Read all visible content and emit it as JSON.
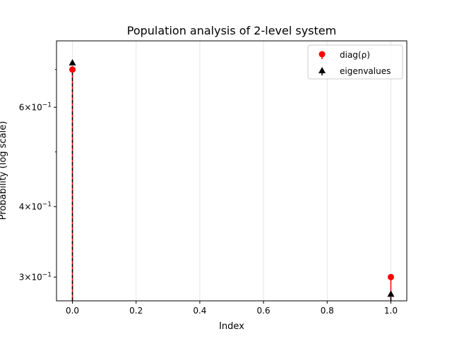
{
  "chart_data": {
    "type": "scatter",
    "title": "Population analysis of 2-level system",
    "xlabel": "Index",
    "ylabel": "Probability (log scale)",
    "yscale": "log",
    "xlim": [
      -0.05,
      1.05
    ],
    "ylim": [
      0.2723,
      0.7868
    ],
    "grid": "x-only",
    "legend_position": "top-right",
    "x_ticks": [
      {
        "value": 0.0,
        "label": "0.0"
      },
      {
        "value": 0.2,
        "label": "0.2"
      },
      {
        "value": 0.4,
        "label": "0.4"
      },
      {
        "value": 0.6,
        "label": "0.6"
      },
      {
        "value": 0.8,
        "label": "0.8"
      },
      {
        "value": 1.0,
        "label": "1.0"
      }
    ],
    "y_major_ticks": [
      {
        "value": 0.3,
        "mantissa": "3",
        "base": "10",
        "exp": "−1"
      },
      {
        "value": 0.4,
        "mantissa": "4",
        "base": "10",
        "exp": "−1"
      },
      {
        "value": 0.6,
        "mantissa": "6",
        "base": "10",
        "exp": "−1"
      }
    ],
    "y_minor_ticks": [
      0.5,
      0.7
    ],
    "series": [
      {
        "name": "diag(ρ)",
        "style": "stem",
        "marker": "circle",
        "color": "#ff0000",
        "line_style": "solid",
        "x": [
          0,
          1
        ],
        "y": [
          0.7,
          0.3
        ]
      },
      {
        "name": "eigenvalues",
        "style": "stem",
        "marker": "triangle-up",
        "color": "#000000",
        "line_style": "dashed",
        "x": [
          0,
          1
        ],
        "y": [
          0.72,
          0.28
        ]
      }
    ]
  }
}
